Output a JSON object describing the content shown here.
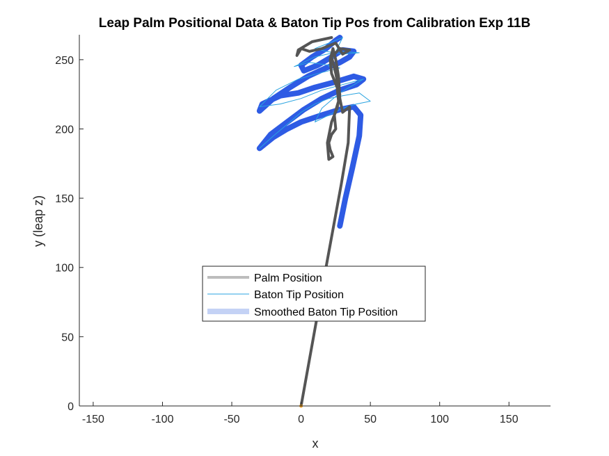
{
  "chart_data": {
    "type": "line",
    "title": "Leap Palm Positional Data & Baton Tip Pos from Calibration Exp 11B",
    "xlabel": "x",
    "ylabel": "y (leap z)",
    "xlim": [
      -160,
      180
    ],
    "ylim": [
      0,
      268
    ],
    "xticks": [
      -150,
      -100,
      -50,
      0,
      50,
      100,
      150
    ],
    "yticks": [
      0,
      50,
      100,
      150,
      200,
      250
    ],
    "grid": false,
    "legend_position": "center-left",
    "series": [
      {
        "name": "Palm Position",
        "color": "#555555",
        "legend_color": "#bdbdbd",
        "points": [
          [
            0,
            0
          ],
          [
            18,
            100
          ],
          [
            29,
            160
          ],
          [
            34,
            190
          ],
          [
            35,
            216
          ],
          [
            30,
            212
          ],
          [
            28,
            222
          ],
          [
            27,
            238
          ],
          [
            25,
            250
          ],
          [
            23,
            258
          ],
          [
            21,
            250
          ],
          [
            22,
            240
          ],
          [
            26,
            230
          ],
          [
            27,
            220
          ],
          [
            24,
            210
          ],
          [
            25,
            200
          ],
          [
            22,
            196
          ],
          [
            20,
            190
          ],
          [
            21,
            185
          ],
          [
            23,
            180
          ],
          [
            20,
            178
          ],
          [
            19,
            190
          ],
          [
            22,
            205
          ],
          [
            26,
            215
          ],
          [
            28,
            225
          ],
          [
            25,
            240
          ],
          [
            22,
            252
          ],
          [
            28,
            258
          ],
          [
            35,
            257
          ],
          [
            30,
            254
          ],
          [
            25,
            262
          ],
          [
            15,
            258
          ],
          [
            6,
            256
          ],
          [
            0,
            258
          ],
          [
            -3,
            253
          ],
          [
            -2,
            257
          ],
          [
            8,
            263
          ],
          [
            22,
            266
          ]
        ]
      },
      {
        "name": "Baton Tip Position",
        "color": "#29a3e0",
        "legend_color": "#29a3e0",
        "points": [
          [
            -30,
            186
          ],
          [
            -20,
            195
          ],
          [
            -8,
            205
          ],
          [
            0,
            212
          ],
          [
            10,
            218
          ],
          [
            20,
            222
          ],
          [
            30,
            224
          ],
          [
            42,
            226
          ],
          [
            50,
            220
          ],
          [
            40,
            218
          ],
          [
            30,
            215
          ],
          [
            20,
            210
          ],
          [
            10,
            205
          ],
          [
            15,
            215
          ],
          [
            28,
            226
          ],
          [
            45,
            236
          ],
          [
            30,
            232
          ],
          [
            15,
            228
          ],
          [
            0,
            222
          ],
          [
            -15,
            218
          ],
          [
            -30,
            216
          ],
          [
            -18,
            228
          ],
          [
            -2,
            236
          ],
          [
            12,
            240
          ],
          [
            28,
            244
          ],
          [
            20,
            246
          ],
          [
            6,
            248
          ],
          [
            -5,
            245
          ],
          [
            10,
            252
          ],
          [
            28,
            256
          ],
          [
            42,
            255
          ],
          [
            30,
            254
          ],
          [
            18,
            256
          ],
          [
            10,
            258
          ],
          [
            20,
            262
          ],
          [
            30,
            266
          ],
          [
            28,
            262
          ],
          [
            20,
            245
          ]
        ]
      },
      {
        "name": "Smoothed Baton Tip Position",
        "color": "#2e5be4",
        "legend_color": "#c4d2f5",
        "points": [
          [
            28,
            130
          ],
          [
            32,
            150
          ],
          [
            37,
            172
          ],
          [
            42,
            195
          ],
          [
            43,
            210
          ],
          [
            38,
            216
          ],
          [
            28,
            214
          ],
          [
            15,
            210
          ],
          [
            0,
            205
          ],
          [
            -10,
            200
          ],
          [
            -20,
            194
          ],
          [
            -30,
            186
          ],
          [
            -22,
            196
          ],
          [
            -10,
            205
          ],
          [
            2,
            214
          ],
          [
            15,
            222
          ],
          [
            28,
            228
          ],
          [
            40,
            232
          ],
          [
            45,
            236
          ],
          [
            38,
            238
          ],
          [
            25,
            234
          ],
          [
            10,
            230
          ],
          [
            -2,
            226
          ],
          [
            -15,
            224
          ],
          [
            -28,
            218
          ],
          [
            -30,
            213
          ],
          [
            -20,
            222
          ],
          [
            -8,
            230
          ],
          [
            5,
            238
          ],
          [
            18,
            244
          ],
          [
            28,
            248
          ],
          [
            35,
            252
          ],
          [
            38,
            256
          ],
          [
            30,
            257
          ],
          [
            22,
            252
          ],
          [
            12,
            246
          ],
          [
            2,
            242
          ],
          [
            0,
            246
          ],
          [
            8,
            252
          ],
          [
            18,
            258
          ],
          [
            25,
            264
          ],
          [
            28,
            266
          ]
        ]
      }
    ]
  },
  "colors": {
    "marker": "#f0a020",
    "axis": "#262626"
  }
}
